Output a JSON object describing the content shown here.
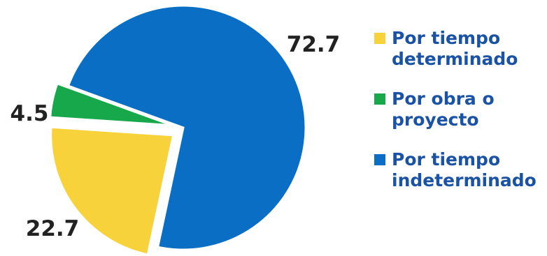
{
  "chart_data": {
    "type": "pie",
    "title": "",
    "slices": [
      {
        "label": "Por tiempo determinado",
        "value": 22.7,
        "color": "#f7d23a"
      },
      {
        "label": "Por obra o proyecto",
        "value": 4.5,
        "color": "#16a84a"
      },
      {
        "label": "Por tiempo indeterminado",
        "value": 72.7,
        "color": "#0a6fc4"
      }
    ],
    "value_labels": [
      "22.7",
      "4.5",
      "72.7"
    ],
    "legend_position": "right"
  }
}
